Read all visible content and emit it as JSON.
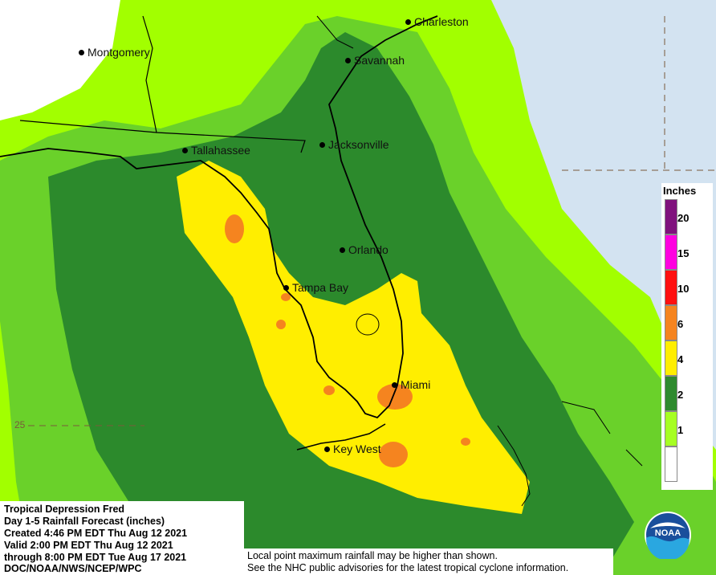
{
  "map": {
    "cities": [
      {
        "name": "Charleston"
      },
      {
        "name": "Montgomery"
      },
      {
        "name": "Savannah"
      },
      {
        "name": "Tallahassee"
      },
      {
        "name": "Jacksonville"
      },
      {
        "name": "Orlando"
      },
      {
        "name": "Tampa Bay"
      },
      {
        "name": "Miami"
      },
      {
        "name": "Key West"
      }
    ],
    "latitude_label": "25",
    "colors": {
      "water": "#d3e3f1",
      "land_white": "#ffffff",
      "lt_green": "#a2ff00",
      "mid_green": "#6ad12a",
      "dk_green": "#2c8a2c",
      "yellow": "#ffee00",
      "orange": "#f5841f"
    }
  },
  "legend": {
    "title": "Inches",
    "bins": [
      {
        "label": "20",
        "color": "#80127d"
      },
      {
        "label": "15",
        "color": "#ff00e0"
      },
      {
        "label": "10",
        "color": "#ff1010"
      },
      {
        "label": "6",
        "color": "#f5841f"
      },
      {
        "label": "4",
        "color": "#ffee00"
      },
      {
        "label": "2",
        "color": "#2e8a2e"
      },
      {
        "label": "1",
        "color": "#a6ff22"
      },
      {
        "label": "",
        "color": "#ffffff"
      }
    ]
  },
  "info": {
    "line1": "Tropical Depression Fred",
    "line2": "Day 1-5 Rainfall Forecast (inches)",
    "line3": "Created 4:46 PM EDT Thu Aug 12 2021",
    "line4": "Valid 2:00 PM EDT Thu Aug 12 2021",
    "line5": "through 8:00 PM EDT Tue Aug 17 2021",
    "line6": "DOC/NOAA/NWS/NCEP/WPC"
  },
  "note": {
    "line1": "Local point maximum rainfall may be higher than shown.",
    "line2": "See the NHC public advisories for the latest tropical cyclone information."
  },
  "logo": {
    "text": "NOAA"
  }
}
